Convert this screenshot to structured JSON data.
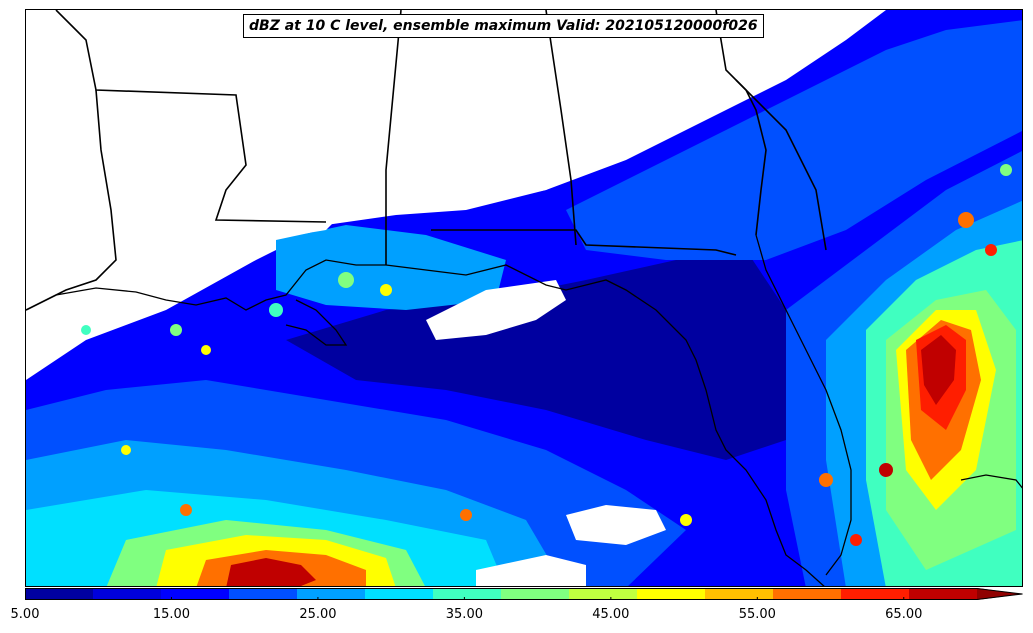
{
  "title": "dBZ at 10 C level, ensemble maximum Valid: 202105120000f026",
  "colorbar": {
    "min": 5,
    "max": 70,
    "step": 5,
    "extend": "max",
    "colors": [
      "#0000a0",
      "#0000dc",
      "#0000ff",
      "#0050ff",
      "#00a0ff",
      "#00e0ff",
      "#40ffc0",
      "#80ff80",
      "#c0ff40",
      "#ffff00",
      "#ffc000",
      "#ff7000",
      "#ff1e00",
      "#c00000",
      "#900000"
    ],
    "tick_labels": [
      "5.00",
      "15.00",
      "25.00",
      "35.00",
      "45.00",
      "55.00",
      "65.00"
    ],
    "tick_values": [
      5,
      15,
      25,
      35,
      45,
      55,
      65
    ]
  },
  "legend_placement": "bottom",
  "background_color": "#ffffff"
}
